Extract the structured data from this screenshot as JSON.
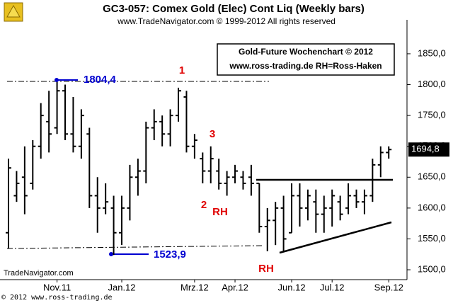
{
  "chart_data": {
    "type": "ohlc",
    "title": "GC3-057:  Comex Gold (Elec) Cont Liq  (Weekly bars)",
    "subtitle": "www.TradeNavigator.com © 1999-2012 All rights reserved",
    "box_lines": [
      "Gold-Future Wochenchart © 2012",
      "www.ross-trading.de  RH=Ross-Haken"
    ],
    "source": "TradeNavigator.com",
    "footer": "© 2012  www.ross-trading.de",
    "last_price": {
      "value": 1694.8,
      "label": "1694,8"
    },
    "annotations": [
      "1",
      "2",
      "3",
      "RH",
      "RH",
      "1804,4",
      "1523,9"
    ],
    "categories": [
      null,
      null,
      null,
      null,
      null,
      null,
      "Nov.11",
      null,
      null,
      null,
      null,
      null,
      null,
      null,
      "Jan.12",
      null,
      null,
      null,
      null,
      null,
      null,
      null,
      null,
      "Mrz.12",
      null,
      null,
      null,
      null,
      "Apr.12",
      null,
      null,
      null,
      null,
      null,
      null,
      "Jun.12",
      null,
      null,
      null,
      null,
      "Jul.12",
      null,
      null,
      null,
      null,
      null,
      null,
      "Sep.12"
    ],
    "open": [
      1560,
      1620,
      1650,
      1640,
      1700,
      1740,
      1730,
      1790,
      1720,
      1700,
      1720,
      1620,
      1600,
      1600,
      1560,
      1600,
      1650,
      1660,
      1730,
      1740,
      1720,
      1750,
      1780,
      1700,
      1680,
      1660,
      1660,
      1640,
      1650,
      1650,
      1650,
      1640,
      1570,
      1580,
      1600,
      1560,
      1620,
      1600,
      1610,
      1590,
      1600,
      1610,
      1600,
      1620,
      1610,
      1620,
      1670,
      1690
    ],
    "high": [
      1680,
      1660,
      1700,
      1710,
      1770,
      1790,
      1804.4,
      1800,
      1780,
      1760,
      1730,
      1650,
      1640,
      1620,
      1620,
      1670,
      1680,
      1740,
      1760,
      1750,
      1760,
      1795,
      1790,
      1720,
      1690,
      1700,
      1680,
      1660,
      1670,
      1660,
      1670,
      1640,
      1600,
      1610,
      1620,
      1640,
      1640,
      1630,
      1630,
      1620,
      1630,
      1620,
      1640,
      1630,
      1630,
      1680,
      1700,
      1700
    ],
    "low": [
      1535,
      1610,
      1590,
      1630,
      1680,
      1690,
      1720,
      1710,
      1690,
      1680,
      1600,
      1560,
      1590,
      1523.9,
      1540,
      1580,
      1620,
      1640,
      1710,
      1700,
      1700,
      1740,
      1690,
      1680,
      1640,
      1640,
      1630,
      1620,
      1640,
      1630,
      1620,
      1560,
      1530,
      1540,
      1530,
      1560,
      1570,
      1580,
      1560,
      1560,
      1570,
      1580,
      1590,
      1600,
      1590,
      1610,
      1650,
      1680
    ],
    "close": [
      1665,
      1640,
      1620,
      1700,
      1750,
      1720,
      1790,
      1720,
      1700,
      1750,
      1620,
      1600,
      1610,
      1560,
      1600,
      1650,
      1660,
      1730,
      1740,
      1720,
      1750,
      1790,
      1700,
      1710,
      1660,
      1680,
      1640,
      1650,
      1660,
      1640,
      1640,
      1570,
      1580,
      1600,
      1550,
      1620,
      1600,
      1620,
      1590,
      1600,
      1620,
      1590,
      1620,
      1610,
      1620,
      1670,
      1690,
      1694.8
    ],
    "color": "#000000",
    "ylim": [
      1484,
      1905
    ],
    "yticks": [
      {
        "value": 1500,
        "label": "1500,0"
      },
      {
        "value": 1550,
        "label": "1550,0"
      },
      {
        "value": 1600,
        "label": "1600,0"
      },
      {
        "value": 1650,
        "label": "1650,0"
      },
      {
        "value": 1700,
        "label": "1700,0"
      },
      {
        "value": 1750,
        "label": "1750,0"
      },
      {
        "value": 1800,
        "label": "1800,0"
      },
      {
        "value": 1850,
        "label": "1850,0"
      }
    ],
    "grid": false
  }
}
